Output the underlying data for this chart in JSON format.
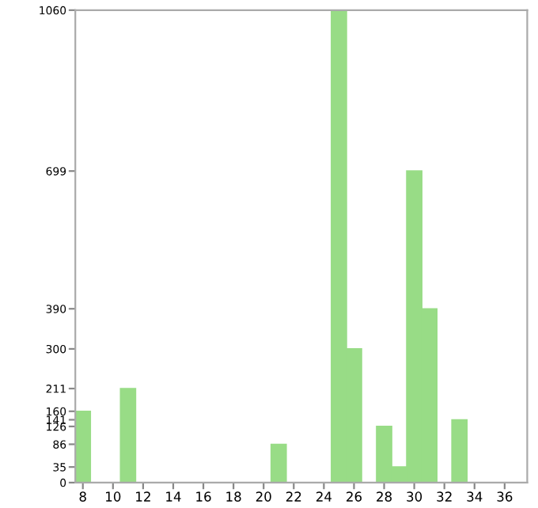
{
  "chart_data": {
    "type": "histogram",
    "bins": [
      7.5,
      8.5,
      9.5,
      10.5,
      11.5,
      12.5,
      13.5,
      14.5,
      15.5,
      16.5,
      17.5,
      18.5,
      19.5,
      20.5,
      21.5,
      22.5,
      23.5,
      24.5,
      25.5,
      26.5,
      27.5,
      28.5,
      29.5,
      30.5,
      31.5,
      32.5,
      33.5,
      34.5,
      35.5,
      36.5,
      37.5
    ],
    "values": [
      160,
      0,
      0,
      211,
      0,
      0,
      0,
      0,
      0,
      0,
      0,
      0,
      0,
      86,
      0,
      0,
      0,
      1060,
      300,
      0,
      126,
      35,
      699,
      390,
      0,
      141,
      0,
      0,
      0,
      0
    ],
    "color": "#98dc86",
    "xlim": [
      7.5,
      37.5
    ],
    "ylim": [
      0,
      1060
    ],
    "xticks": [
      8,
      10,
      12,
      14,
      16,
      18,
      20,
      22,
      24,
      26,
      28,
      30,
      32,
      34,
      36
    ],
    "yticks": [
      0,
      35,
      86,
      126,
      141,
      160,
      211,
      300,
      390,
      699,
      1060
    ],
    "grid": false
  }
}
